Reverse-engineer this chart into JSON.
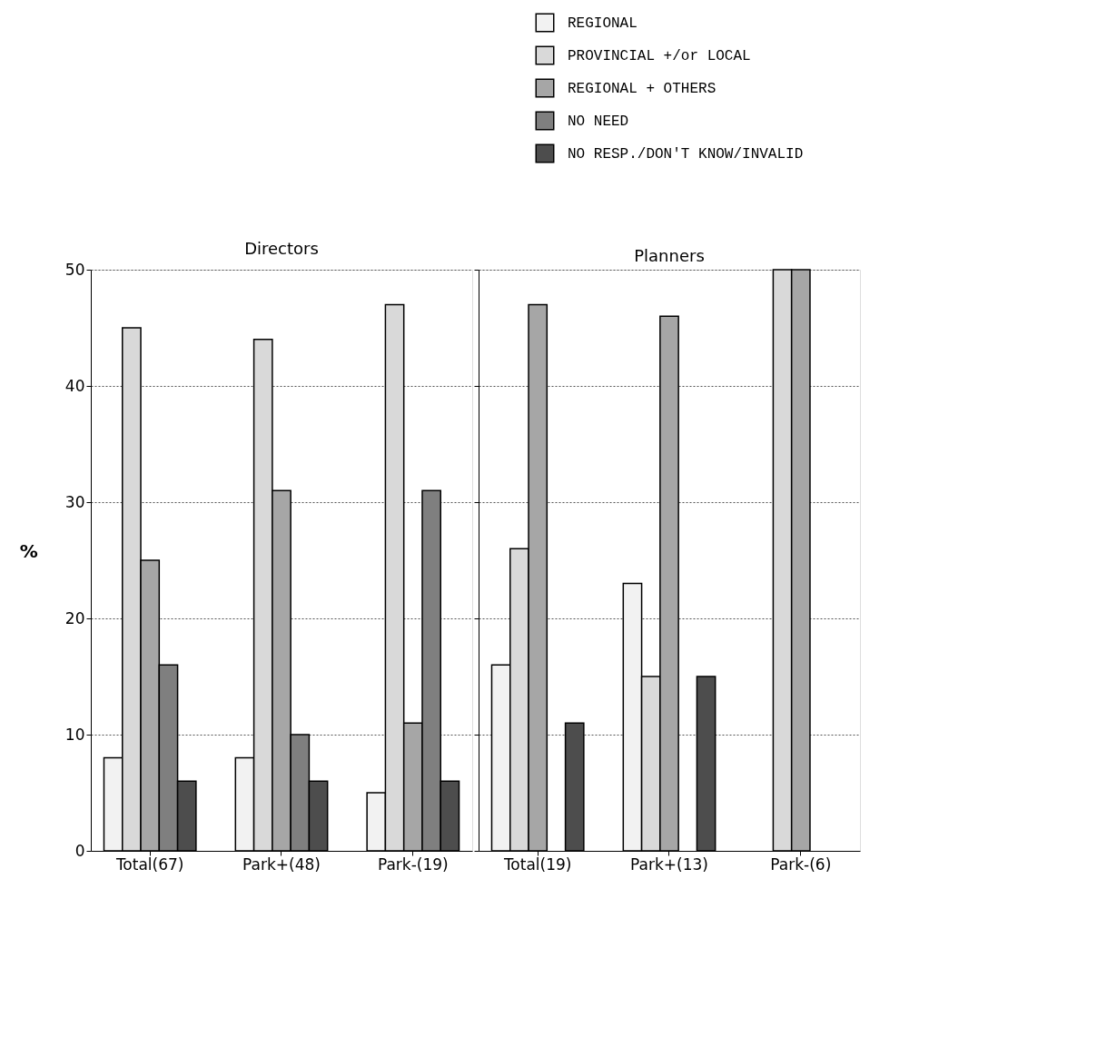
{
  "chart_data": [
    {
      "type": "bar",
      "title": "Directors",
      "ylabel": "%",
      "categories": [
        "Total(67)",
        "Park+(48)",
        "Park-(19)"
      ],
      "ylim": [
        0,
        50
      ],
      "yticks": [
        0,
        10,
        20,
        30,
        40,
        50
      ],
      "grid": "y",
      "legend": "top right",
      "series": [
        {
          "name": "REGIONAL",
          "color": "#f2f2f2",
          "values": [
            8,
            8,
            5
          ]
        },
        {
          "name": "PROVINCIAL +/or LOCAL",
          "color": "#d9d9d9",
          "values": [
            45,
            44,
            47
          ]
        },
        {
          "name": "REGIONAL + OTHERS",
          "color": "#a6a6a6",
          "values": [
            25,
            31,
            11
          ]
        },
        {
          "name": "NO NEED",
          "color": "#7f7f7f",
          "values": [
            16,
            10,
            31
          ]
        },
        {
          "name": "NO RESP./DON'T KNOW/INVALID",
          "color": "#4d4d4d",
          "values": [
            6,
            6,
            6
          ]
        }
      ]
    },
    {
      "type": "bar",
      "title": "Planners",
      "categories": [
        "Total(19)",
        "Park+(13)",
        "Park-(6)"
      ],
      "ylim": [
        0,
        50
      ],
      "yticks": [
        0,
        10,
        20,
        30,
        40,
        50
      ],
      "grid": "y",
      "tick_labels": "x",
      "series": [
        {
          "color": "#f2f2f2",
          "values": [
            16,
            23,
            0
          ]
        },
        {
          "color": "#d9d9d9",
          "values": [
            26,
            15,
            50
          ]
        },
        {
          "color": "#a6a6a6",
          "values": [
            47,
            46,
            50
          ]
        },
        {
          "color": "#7f7f7f",
          "values": [
            0,
            0,
            0
          ]
        },
        {
          "color": "#4d4d4d",
          "values": [
            11,
            15,
            0
          ]
        }
      ]
    }
  ]
}
